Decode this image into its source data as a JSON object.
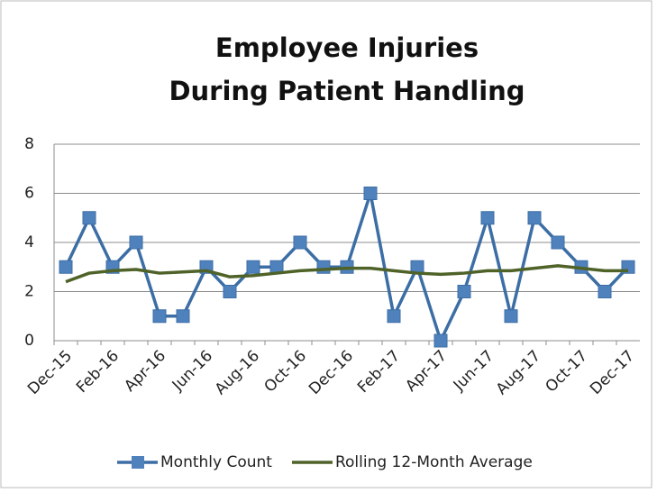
{
  "chart_data": {
    "type": "line",
    "title": [
      "Employee Injuries",
      "During Patient Handling"
    ],
    "categories": [
      "Dec-15",
      null,
      "Feb-16",
      null,
      "Apr-16",
      null,
      "Jun-16",
      null,
      "Aug-16",
      null,
      "Oct-16",
      null,
      "Dec-16",
      null,
      "Feb-17",
      null,
      "Apr-17",
      null,
      "Jun-17",
      null,
      "Aug-17",
      null,
      "Oct-17",
      null,
      "Dec-17"
    ],
    "series": [
      {
        "name": "Monthly Count",
        "color": "#4f81bd",
        "marker": "square",
        "values": [
          3,
          5,
          3,
          4,
          1,
          1,
          3,
          2,
          3,
          3,
          4,
          3,
          3,
          6,
          1,
          3,
          0,
          2,
          5,
          1,
          5,
          4,
          3,
          2,
          3
        ]
      },
      {
        "name": "Rolling 12-Month Average",
        "color": "#4f6228",
        "values": [
          2.4,
          2.75,
          2.85,
          2.9,
          2.75,
          2.8,
          2.85,
          2.6,
          2.65,
          2.75,
          2.85,
          2.9,
          2.95,
          2.95,
          2.85,
          2.75,
          2.7,
          2.75,
          2.85,
          2.85,
          2.95,
          3.05,
          2.95,
          2.85,
          2.85
        ]
      }
    ],
    "ylim": [
      0,
      8
    ],
    "yticks": [
      0,
      2,
      4,
      6,
      8
    ],
    "grid": true,
    "legend": "bottom"
  }
}
